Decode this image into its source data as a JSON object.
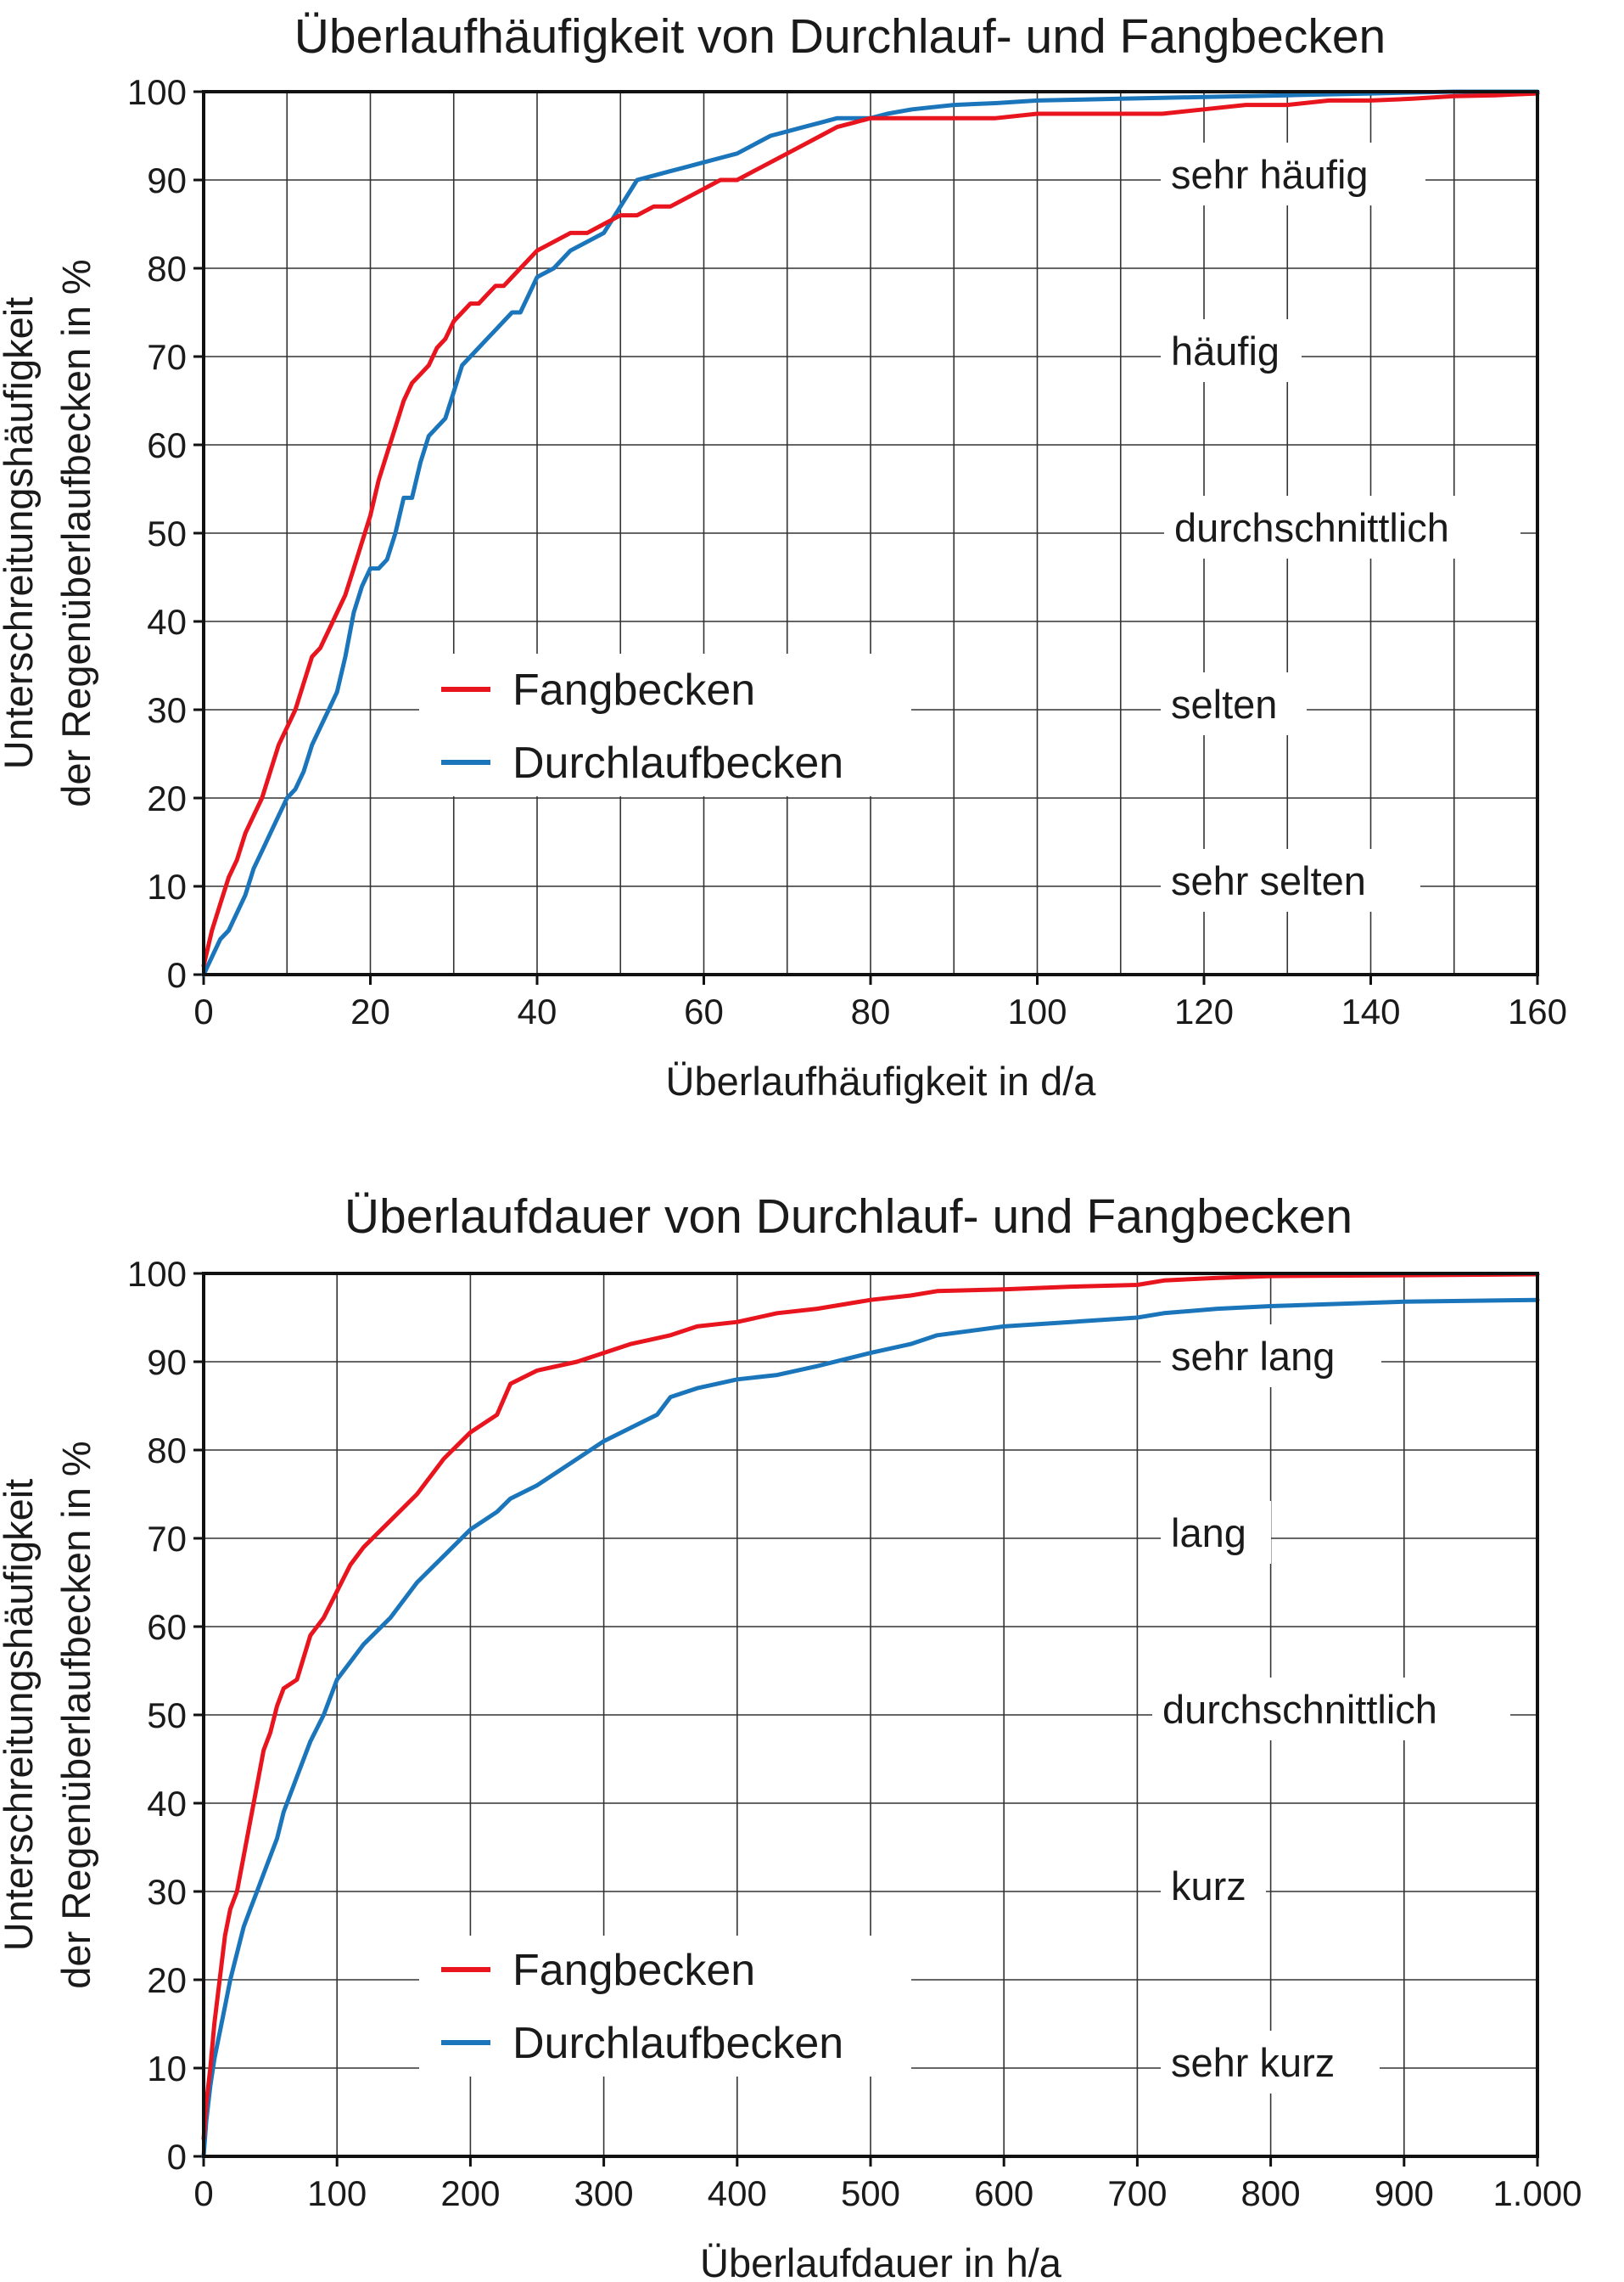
{
  "chart_data": [
    {
      "type": "line",
      "title": "Überlaufhäufigkeit von Durchlauf- und Fangbecken",
      "xlabel": "Überlaufhäufigkeit in d/a",
      "ylabel_line1": "Unterschreitungshäufigkeit",
      "ylabel_line2": "der Regenüberlaufbecken in %",
      "xlim": [
        0,
        160
      ],
      "ylim": [
        0,
        100
      ],
      "x_major_ticks": [
        0,
        20,
        40,
        60,
        80,
        100,
        120,
        140,
        160
      ],
      "x_minor_ticks": [
        10,
        30,
        50,
        70,
        90,
        110,
        130,
        150
      ],
      "y_ticks": [
        0,
        10,
        20,
        30,
        40,
        50,
        60,
        70,
        80,
        90,
        100
      ],
      "x_tick_labels": [
        "0",
        "20",
        "40",
        "60",
        "80",
        "100",
        "120",
        "140",
        "160"
      ],
      "y_tick_labels": [
        "0",
        "10",
        "20",
        "30",
        "40",
        "50",
        "60",
        "70",
        "80",
        "90",
        "100"
      ],
      "grid": true,
      "legend_placement": "center-left",
      "categories": [
        "sehr häufig",
        "häufig",
        "durchschnittlich",
        "selten",
        "sehr selten"
      ],
      "series": [
        {
          "name": "Fangbecken",
          "color": "#e8141e",
          "x": [
            0,
            0.5,
            1,
            2,
            3,
            4,
            5,
            6,
            7,
            8,
            9,
            10,
            11,
            12,
            13,
            14,
            15,
            16,
            17,
            18,
            19,
            20,
            21,
            22,
            23,
            24,
            25,
            26,
            27,
            28,
            29,
            30,
            31,
            32,
            33,
            34,
            35,
            36,
            37,
            38,
            39,
            40,
            42,
            44,
            46,
            48,
            50,
            52,
            54,
            56,
            58,
            60,
            62,
            64,
            66,
            68,
            70,
            72,
            74,
            76,
            78,
            80,
            82,
            85,
            90,
            95,
            100,
            105,
            110,
            115,
            120,
            125,
            130,
            135,
            140,
            145,
            150,
            155,
            160
          ],
          "y": [
            1,
            3,
            5,
            8,
            11,
            13,
            16,
            18,
            20,
            23,
            26,
            28,
            30,
            33,
            36,
            37,
            39,
            41,
            43,
            46,
            49,
            52,
            56,
            59,
            62,
            65,
            67,
            68,
            69,
            71,
            72,
            74,
            75,
            76,
            76,
            77,
            78,
            78,
            79,
            80,
            81,
            82,
            83,
            84,
            84,
            85,
            86,
            86,
            87,
            87,
            88,
            89,
            90,
            90,
            91,
            92,
            93,
            94,
            95,
            96,
            96.5,
            97,
            97,
            97,
            97,
            97,
            97.5,
            97.5,
            97.5,
            97.5,
            98,
            98.5,
            98.5,
            99,
            99,
            99.2,
            99.5,
            99.6,
            99.8
          ]
        },
        {
          "name": "Durchlaufbecken",
          "color": "#1b75bb",
          "x": [
            0,
            0.5,
            1,
            2,
            3,
            4,
            5,
            6,
            7,
            8,
            9,
            10,
            11,
            12,
            13,
            14,
            15,
            16,
            17,
            18,
            19,
            20,
            21,
            22,
            23,
            24,
            25,
            26,
            27,
            28,
            29,
            30,
            31,
            32,
            33,
            34,
            35,
            36,
            37,
            38,
            39,
            40,
            42,
            44,
            46,
            48,
            50,
            52,
            54,
            56,
            58,
            60,
            62,
            64,
            66,
            68,
            70,
            72,
            74,
            76,
            78,
            80,
            82,
            85,
            90,
            95,
            100,
            105,
            110,
            115,
            120,
            125,
            130,
            135,
            140,
            145,
            150,
            155,
            160
          ],
          "y": [
            0,
            1,
            2,
            4,
            5,
            7,
            9,
            12,
            14,
            16,
            18,
            20,
            21,
            23,
            26,
            28,
            30,
            32,
            36,
            41,
            44,
            46,
            46,
            47,
            50,
            54,
            54,
            58,
            61,
            62,
            63,
            66,
            69,
            70,
            71,
            72,
            73,
            74,
            75,
            75,
            77,
            79,
            80,
            82,
            83,
            84,
            87,
            90,
            90.5,
            91,
            91.5,
            92,
            92.5,
            93,
            94,
            95,
            95.5,
            96,
            96.5,
            97,
            97,
            97,
            97.5,
            98,
            98.5,
            98.7,
            99,
            99.1,
            99.2,
            99.3,
            99.4,
            99.5,
            99.6,
            99.7,
            99.8,
            99.9,
            100,
            100,
            100
          ]
        }
      ]
    },
    {
      "type": "line",
      "title": "Überlaufdauer von Durchlauf- und Fangbecken",
      "xlabel": "Überlaufdauer in h/a",
      "ylabel_line1": "Unterschreitungshäufigkeit",
      "ylabel_line2": "der Regenüberlaufbecken in %",
      "xlim": [
        0,
        1000
      ],
      "ylim": [
        0,
        100
      ],
      "x_major_ticks": [
        0,
        100,
        200,
        300,
        400,
        500,
        600,
        700,
        800,
        900,
        1000
      ],
      "x_minor_ticks": [],
      "y_ticks": [
        0,
        10,
        20,
        30,
        40,
        50,
        60,
        70,
        80,
        90,
        100
      ],
      "x_tick_labels": [
        "0",
        "100",
        "200",
        "300",
        "400",
        "500",
        "600",
        "700",
        "800",
        "900",
        "1.000"
      ],
      "y_tick_labels": [
        "0",
        "10",
        "20",
        "30",
        "40",
        "50",
        "60",
        "70",
        "80",
        "90",
        "100"
      ],
      "grid": true,
      "legend_placement": "bottom-left",
      "categories": [
        "sehr lang",
        "lang",
        "durchschnittlich",
        "kurz",
        "sehr kurz"
      ],
      "series": [
        {
          "name": "Fangbecken",
          "color": "#e8141e",
          "x": [
            0,
            2,
            5,
            8,
            12,
            16,
            20,
            25,
            30,
            35,
            40,
            45,
            50,
            55,
            60,
            70,
            80,
            90,
            100,
            110,
            120,
            140,
            160,
            180,
            200,
            220,
            230,
            250,
            280,
            300,
            320,
            350,
            370,
            400,
            430,
            460,
            500,
            530,
            550,
            600,
            650,
            700,
            720,
            760,
            800,
            900,
            1000
          ],
          "y": [
            2,
            6,
            10,
            15,
            20,
            25,
            28,
            30,
            34,
            38,
            42,
            46,
            48,
            51,
            53,
            54,
            59,
            61,
            64,
            67,
            69,
            72,
            75,
            79,
            82,
            84,
            87.5,
            89,
            90,
            91,
            92,
            93,
            94,
            94.5,
            95.5,
            96,
            97,
            97.5,
            98,
            98.2,
            98.5,
            98.7,
            99.2,
            99.5,
            99.7,
            99.8,
            99.9
          ]
        },
        {
          "name": "Durchlaufbecken",
          "color": "#1b75bb",
          "x": [
            0,
            2,
            5,
            8,
            12,
            16,
            20,
            25,
            30,
            35,
            40,
            45,
            50,
            55,
            60,
            70,
            80,
            90,
            100,
            110,
            120,
            140,
            160,
            180,
            200,
            220,
            230,
            250,
            280,
            300,
            320,
            340,
            350,
            370,
            400,
            430,
            460,
            500,
            530,
            550,
            600,
            650,
            700,
            720,
            760,
            800,
            900,
            1000
          ],
          "y": [
            0,
            4,
            8,
            11,
            14,
            17,
            20,
            23,
            26,
            28,
            30,
            32,
            34,
            36,
            39,
            43,
            47,
            50,
            54,
            56,
            58,
            61,
            65,
            68,
            71,
            73,
            74.5,
            76,
            79,
            81,
            82.5,
            84,
            86,
            87,
            88,
            88.5,
            89.5,
            91,
            92,
            93,
            94,
            94.5,
            95,
            95.5,
            96,
            96.3,
            96.8,
            97
          ]
        }
      ]
    }
  ]
}
